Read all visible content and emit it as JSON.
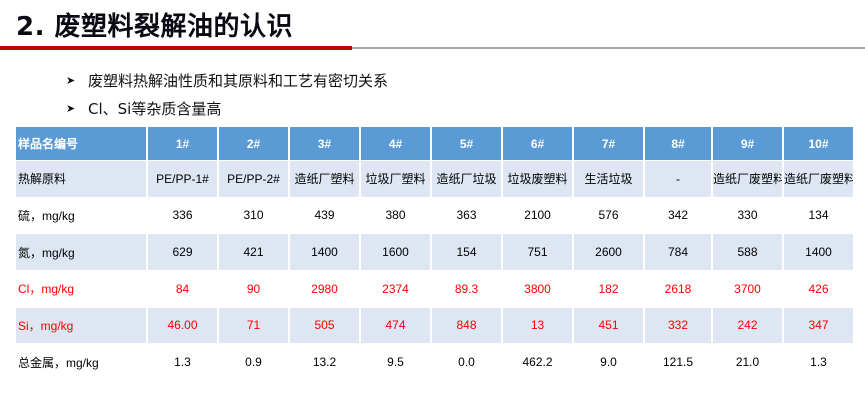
{
  "title": "2. 废塑料裂解油的认识",
  "bullets": [
    "废塑料热解油性质和其原料和工艺有密切关系",
    "Cl、Si等杂质含量高"
  ],
  "table": {
    "headers": [
      "样品名编号",
      "1#",
      "2#",
      "3#",
      "4#",
      "5#",
      "6#",
      "7#",
      "8#",
      "9#",
      "10#"
    ],
    "rows": [
      {
        "label": "热解原料",
        "cells": [
          "PE/PP-1#",
          "PE/PP-2#",
          "造纸厂塑料",
          "垃圾厂塑料",
          "造纸厂垃圾",
          "垃圾废塑料",
          "生活垃圾",
          "-",
          "造纸厂废塑料",
          "造纸厂废塑料"
        ]
      },
      {
        "label": "硫，mg/kg",
        "cells": [
          "336",
          "310",
          "439",
          "380",
          "363",
          "2100",
          "576",
          "342",
          "330",
          "134"
        ]
      },
      {
        "label": "氮，mg/kg",
        "cells": [
          "629",
          "421",
          "1400",
          "1600",
          "154",
          "751",
          "2600",
          "784",
          "588",
          "1400"
        ]
      },
      {
        "label": "Cl，mg/kg",
        "cells": [
          "84",
          "90",
          "2980",
          "2374",
          "89.3",
          "3800",
          "182",
          "2618",
          "3700",
          "426"
        ]
      },
      {
        "label": "Si，mg/kg",
        "cells": [
          "46.00",
          "71",
          "505",
          "474",
          "848",
          "13",
          "451",
          "332",
          "242",
          "347"
        ]
      },
      {
        "label": "总金属，mg/kg",
        "cells": [
          "1.3",
          "0.9",
          "13.2",
          "9.5",
          "0.0",
          "462.2",
          "9.0",
          "121.5",
          "21.0",
          "1.3"
        ]
      }
    ]
  },
  "colors": {
    "title_rule": "#c00000",
    "divider": "#a6a6a6",
    "header_bg": "#5b9bd5",
    "row_alt_bg": "#dde6f2",
    "highlight_text": "#ff0000"
  },
  "icons": {
    "bullet": "arrow-right-icon"
  }
}
